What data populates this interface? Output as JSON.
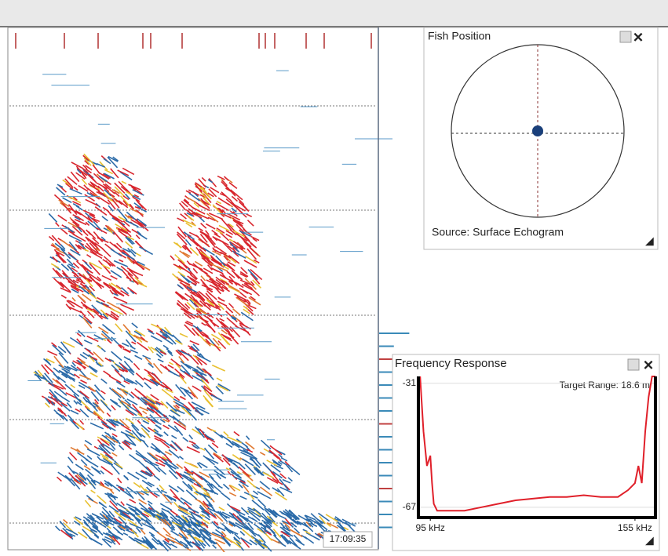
{
  "echogram": {
    "time": "17:09:35"
  },
  "fish_position": {
    "title": "Fish Position",
    "source": "Source: Surface Echogram"
  },
  "frequency_response": {
    "title": "Frequency Response",
    "target_range": "Target Range: 18.6 m",
    "type": "line",
    "color": "#e0202a",
    "x": [
      92,
      93,
      94,
      95,
      95.5,
      96,
      97,
      100,
      105,
      110,
      115,
      120,
      125,
      130,
      135,
      140,
      145,
      150,
      153,
      155,
      156,
      157,
      158,
      159,
      160,
      161
    ],
    "values": [
      -29,
      -45,
      -55,
      -52,
      -60,
      -66,
      -68,
      -68,
      -68,
      -67,
      -66,
      -65,
      -64.5,
      -64,
      -64,
      -63.5,
      -64,
      -64,
      -62,
      -60,
      -55,
      -60,
      -45,
      -35,
      -29,
      -29
    ],
    "xlim": [
      91.5,
      161
    ],
    "ylim": [
      -70,
      -29
    ],
    "xticks": [
      {
        "value": 95,
        "label": "95 kHz"
      },
      {
        "value": 155,
        "label": "155 kHz"
      }
    ],
    "yticks": [
      -31,
      -67
    ]
  }
}
